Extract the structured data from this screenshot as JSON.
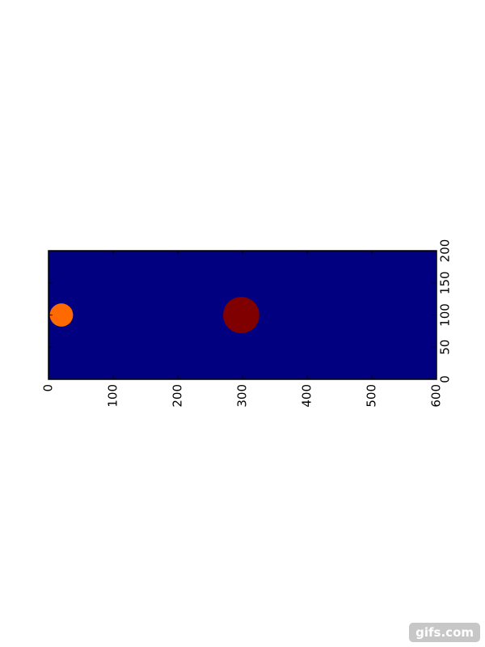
{
  "chart_data": {
    "type": "scatter",
    "title": "",
    "xlabel": "",
    "ylabel": "",
    "xlim": [
      0,
      600
    ],
    "ylim": [
      0,
      200
    ],
    "x_ticks": [
      0,
      100,
      200,
      300,
      400,
      500,
      600
    ],
    "y_ticks": [
      0,
      50,
      100,
      150,
      200
    ],
    "x_tick_labels": [
      "0",
      "100",
      "200",
      "300",
      "400",
      "500",
      "600"
    ],
    "y_tick_labels": [
      "0",
      "50",
      "100",
      "150",
      "200"
    ],
    "y_axis_side": "right",
    "x_tick_label_rotation": "vertical",
    "y_tick_label_rotation": "vertical",
    "grid": false,
    "background_color": "#000080",
    "points": [
      {
        "x": 20,
        "y": 100,
        "radius": 18,
        "color": "#ff6a00"
      },
      {
        "x": 298,
        "y": 100,
        "radius": 28,
        "color": "#800000"
      }
    ]
  },
  "watermark": {
    "text": "gifs.com"
  }
}
